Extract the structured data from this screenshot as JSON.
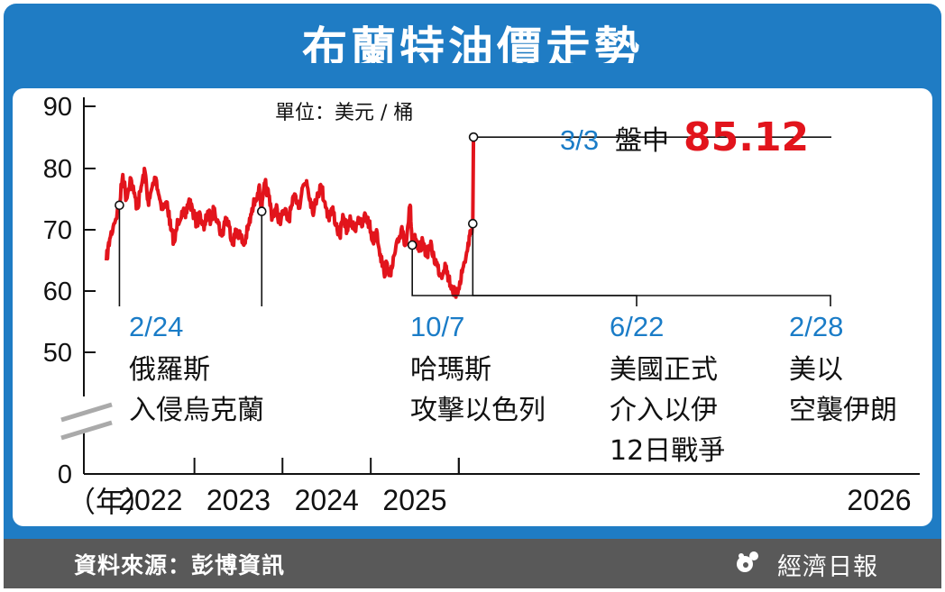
{
  "title": "布蘭特油價走勢",
  "source": "資料來源：彭博資訊",
  "publisher": "經濟日報",
  "chart_data": {
    "type": "line",
    "unit_label": "單位：美元 / 桶",
    "x_unit_label": "（年）",
    "yticks": [
      0,
      50,
      60,
      70,
      80,
      90
    ],
    "ylim": [
      50,
      90
    ],
    "y_axis_break": true,
    "xticks": [
      "2022",
      "2023",
      "2024",
      "2025",
      "2026"
    ],
    "grid": false,
    "legend": "none",
    "colors": {
      "line": "#e2141c",
      "date_label": "#1a7cc7",
      "callout_value": "#e2141c"
    },
    "series": [
      {
        "points": [
          [
            "2022-01-01",
            65.0
          ],
          [
            "2022-01-15",
            68.5
          ],
          [
            "2022-02-01",
            71.0
          ],
          [
            "2022-02-24",
            74.0
          ],
          [
            "2022-03-10",
            79.0
          ],
          [
            "2022-03-25",
            75.0
          ],
          [
            "2022-04-10",
            78.5
          ],
          [
            "2022-04-25",
            76.0
          ],
          [
            "2022-05-10",
            73.5
          ],
          [
            "2022-05-25",
            77.0
          ],
          [
            "2022-06-10",
            79.5
          ],
          [
            "2022-06-25",
            74.0
          ],
          [
            "2022-07-10",
            77.0
          ],
          [
            "2022-07-25",
            78.5
          ],
          [
            "2022-08-10",
            75.0
          ],
          [
            "2022-08-25",
            73.5
          ],
          [
            "2022-09-10",
            74.5
          ],
          [
            "2022-09-25",
            70.0
          ],
          [
            "2022-10-10",
            68.0
          ],
          [
            "2022-10-25",
            71.5
          ],
          [
            "2022-11-10",
            73.0
          ],
          [
            "2022-11-25",
            72.0
          ],
          [
            "2022-12-10",
            75.0
          ],
          [
            "2022-12-25",
            73.0
          ],
          [
            "2023-01-10",
            71.0
          ],
          [
            "2023-01-25",
            72.5
          ],
          [
            "2023-02-10",
            70.0
          ],
          [
            "2023-02-25",
            73.0
          ],
          [
            "2023-03-10",
            71.5
          ],
          [
            "2023-03-25",
            73.5
          ],
          [
            "2023-04-10",
            71.0
          ],
          [
            "2023-04-25",
            69.0
          ],
          [
            "2023-05-10",
            72.0
          ],
          [
            "2023-05-25",
            70.5
          ],
          [
            "2023-06-10",
            68.0
          ],
          [
            "2023-06-25",
            70.0
          ],
          [
            "2023-07-10",
            69.0
          ],
          [
            "2023-07-25",
            67.5
          ],
          [
            "2023-08-10",
            70.0
          ],
          [
            "2023-08-25",
            72.5
          ],
          [
            "2023-09-10",
            75.0
          ],
          [
            "2023-09-25",
            77.0
          ],
          [
            "2023-10-07",
            73.0
          ],
          [
            "2023-10-20",
            77.5
          ],
          [
            "2023-11-05",
            75.5
          ],
          [
            "2023-11-20",
            72.0
          ],
          [
            "2023-12-05",
            73.5
          ],
          [
            "2023-12-20",
            71.5
          ],
          [
            "2024-01-10",
            73.0
          ],
          [
            "2024-01-25",
            71.5
          ],
          [
            "2024-02-10",
            74.0
          ],
          [
            "2024-02-25",
            75.5
          ],
          [
            "2024-03-10",
            74.0
          ],
          [
            "2024-03-25",
            77.0
          ],
          [
            "2024-04-10",
            78.0
          ],
          [
            "2024-04-25",
            75.0
          ],
          [
            "2024-05-10",
            73.0
          ],
          [
            "2024-05-25",
            76.0
          ],
          [
            "2024-06-10",
            77.0
          ],
          [
            "2024-06-25",
            74.5
          ],
          [
            "2024-07-10",
            72.0
          ],
          [
            "2024-07-25",
            73.5
          ],
          [
            "2024-08-10",
            71.0
          ],
          [
            "2024-08-25",
            69.0
          ],
          [
            "2024-09-10",
            72.0
          ],
          [
            "2024-09-25",
            70.0
          ],
          [
            "2024-10-10",
            71.5
          ],
          [
            "2024-10-25",
            70.0
          ],
          [
            "2024-11-10",
            72.0
          ],
          [
            "2024-11-25",
            70.5
          ],
          [
            "2024-12-10",
            72.5
          ],
          [
            "2024-12-25",
            71.0
          ],
          [
            "2025-01-10",
            68.0
          ],
          [
            "2025-01-25",
            70.0
          ],
          [
            "2025-02-10",
            66.0
          ],
          [
            "2025-02-25",
            63.0
          ],
          [
            "2025-03-10",
            64.5
          ],
          [
            "2025-03-25",
            62.5
          ],
          [
            "2025-04-10",
            66.0
          ],
          [
            "2025-04-25",
            68.0
          ],
          [
            "2025-05-10",
            70.5
          ],
          [
            "2025-05-25",
            67.5
          ],
          [
            "2025-06-13",
            74.0
          ],
          [
            "2025-06-22",
            67.5
          ],
          [
            "2025-07-05",
            68.5
          ],
          [
            "2025-07-20",
            66.5
          ],
          [
            "2025-08-05",
            68.0
          ],
          [
            "2025-08-20",
            66.0
          ],
          [
            "2025-09-05",
            67.5
          ],
          [
            "2025-09-20",
            65.5
          ],
          [
            "2025-10-05",
            64.0
          ],
          [
            "2025-10-20",
            62.5
          ],
          [
            "2025-11-05",
            64.5
          ],
          [
            "2025-11-20",
            62.0
          ],
          [
            "2025-12-05",
            60.5
          ],
          [
            "2025-12-20",
            59.0
          ],
          [
            "2026-01-05",
            61.5
          ],
          [
            "2026-01-20",
            64.0
          ],
          [
            "2026-02-05",
            66.5
          ],
          [
            "2026-02-15",
            69.0
          ],
          [
            "2026-02-28",
            71.0
          ],
          [
            "2026-03-03",
            85.12
          ]
        ]
      }
    ],
    "markers": [
      {
        "date": "2022-02-24",
        "value": 74.0
      },
      {
        "date": "2023-10-07",
        "value": 73.0
      },
      {
        "date": "2025-06-22",
        "value": 67.5
      },
      {
        "date": "2026-02-28",
        "value": 71.0
      },
      {
        "date": "2026-03-03",
        "value": 85.12
      }
    ],
    "annotations": [
      {
        "date_label": "2/24",
        "lines": [
          "俄羅斯",
          "入侵烏克蘭"
        ]
      },
      {
        "date_label": "10/7",
        "lines": [
          "哈瑪斯",
          "攻擊以色列"
        ]
      },
      {
        "date_label": "6/22",
        "lines": [
          "美國正式",
          "介入以伊",
          "12日戰爭"
        ]
      },
      {
        "date_label": "2/28",
        "lines": [
          "美以",
          "空襲伊朗"
        ]
      }
    ],
    "callout": {
      "date_label": "3/3",
      "text": "盤中",
      "value": "85.12"
    }
  }
}
